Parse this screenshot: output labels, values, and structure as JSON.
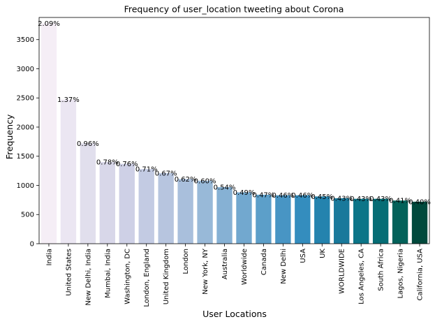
{
  "chart_data": {
    "type": "bar",
    "title": "Frequency of user_location tweeting about Corona",
    "xlabel": "User Locations",
    "ylabel": "Frequency",
    "ylim": [
      0,
      3880
    ],
    "yticks": [
      0,
      500,
      1000,
      1500,
      2000,
      2500,
      3000,
      3500
    ],
    "grid": false,
    "categories": [
      "India",
      "United States",
      "New Delhi, India",
      "Mumbai, India",
      "Washington, DC",
      "London, England",
      "United Kingdom",
      "London",
      "New York, NY",
      "Australia",
      "Worldwide",
      "Canada",
      "New Delhi",
      "USA",
      "UK",
      "WORLDWIDE",
      "Los Angeles, CA",
      "South Africa",
      "Lagos, Nigeria",
      "California, USA"
    ],
    "values": [
      3780,
      2470,
      1720,
      1400,
      1370,
      1280,
      1210,
      1110,
      1080,
      970,
      880,
      840,
      830,
      830,
      810,
      780,
      770,
      770,
      740,
      720
    ],
    "labels": [
      "2.09%",
      "1.37%",
      "0.96%",
      "0.78%",
      "0.76%",
      "0.71%",
      "0.67%",
      "0.62%",
      "0.60%",
      "0.54%",
      "0.49%",
      "0.47%",
      "0.46%",
      "0.46%",
      "0.45%",
      "0.43%",
      "0.43%",
      "0.43%",
      "0.41%",
      "0.40%"
    ],
    "colors": [
      "#f5eef6",
      "#ebe6f2",
      "#e1dfed",
      "#d8d7e9",
      "#ced0e6",
      "#c3cbe3",
      "#b7c5df",
      "#a9bfdc",
      "#98b9d8",
      "#86b1d4",
      "#72a8cf",
      "#5c9fc9",
      "#4895c4",
      "#348dbe",
      "#2483ae",
      "#19799b",
      "#0c7588",
      "#066d75",
      "#03625a",
      "#01493c"
    ]
  }
}
